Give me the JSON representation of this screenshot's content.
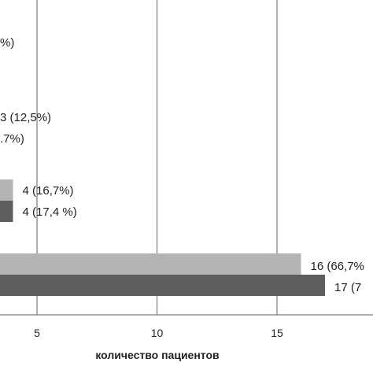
{
  "chart_data": {
    "type": "bar",
    "orientation": "horizontal",
    "xlabel": "количество пациентов",
    "x_ticks": [
      5,
      10,
      15
    ],
    "x_range_visible": [
      3.5,
      18.5
    ],
    "grid": "vertical",
    "colors": {
      "light": "#b4b4b4",
      "dark": "#5e5e5e",
      "grid": "#7a7a7a",
      "text": "#222222"
    },
    "groups": [
      {
        "bars": [
          {
            "series": "light",
            "value": null,
            "label": "%)"
          }
        ]
      },
      {
        "bars": [
          {
            "series": "light",
            "value": null,
            "label": "3 (12,5%)"
          },
          {
            "series": "dark",
            "value": null,
            "label": ".7%)"
          }
        ]
      },
      {
        "bars": [
          {
            "series": "light",
            "value": 4,
            "label": "4 (16,7%)"
          },
          {
            "series": "dark",
            "value": 4,
            "label": "4 (17,4 %)"
          }
        ]
      },
      {
        "bars": [
          {
            "series": "light",
            "value": 16,
            "label": "16 (66,7%"
          },
          {
            "series": "dark",
            "value": 17,
            "label": "17 (7"
          }
        ]
      }
    ]
  }
}
